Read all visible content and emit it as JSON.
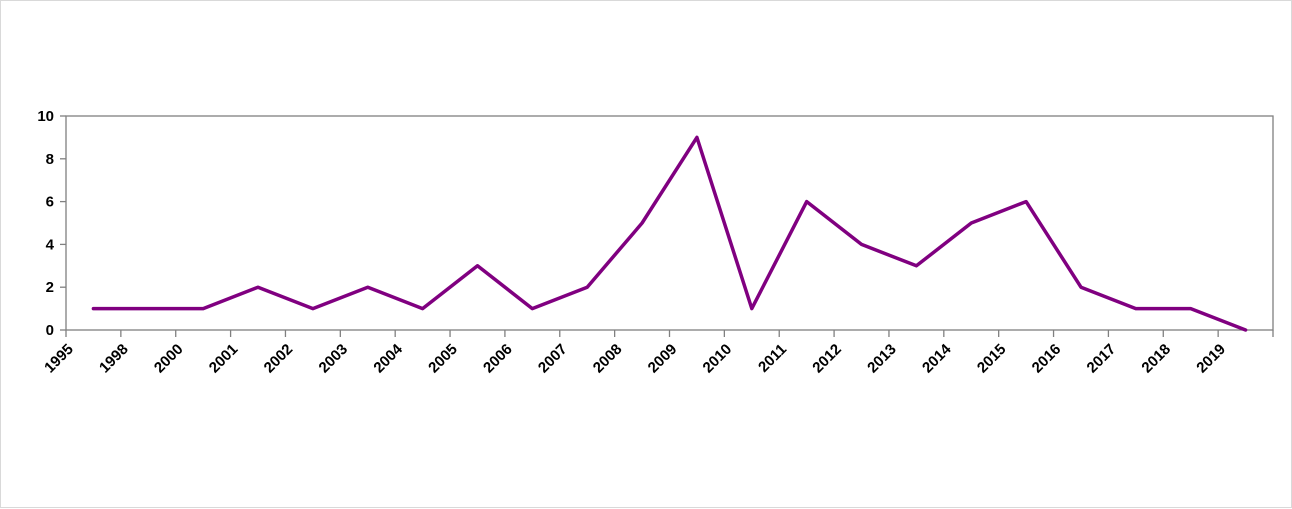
{
  "chart_data": {
    "type": "line",
    "title": "",
    "xlabel": "",
    "ylabel": "",
    "categories": [
      "1995",
      "1998",
      "2000",
      "2001",
      "2002",
      "2003",
      "2004",
      "2005",
      "2006",
      "2007",
      "2008",
      "2009",
      "2010",
      "2011",
      "2012",
      "2013",
      "2014",
      "2015",
      "2016",
      "2017",
      "2018",
      "2019"
    ],
    "series": [
      {
        "values": [
          1,
          1,
          1,
          2,
          1,
          2,
          1,
          3,
          1,
          2,
          5,
          9,
          1,
          6,
          4,
          3,
          5,
          6,
          2,
          1,
          1,
          0
        ],
        "color": "#800080"
      }
    ],
    "ylim": [
      0,
      10
    ],
    "yticks": [
      0,
      2,
      4,
      6,
      8,
      10
    ],
    "grid": false,
    "legend": "none",
    "axis_color": "#808080"
  }
}
